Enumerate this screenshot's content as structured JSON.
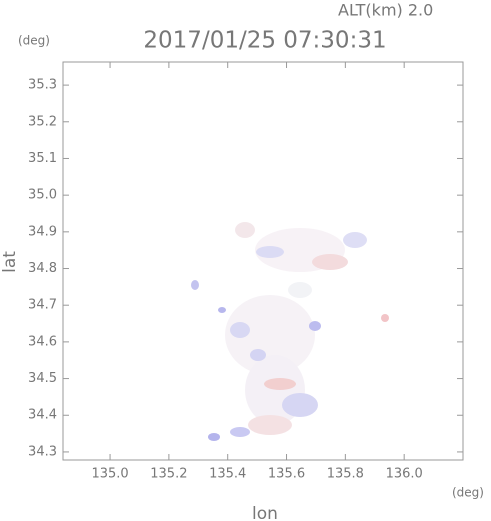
{
  "chart_data": {
    "type": "map",
    "title": "2017/01/25 07:30:31",
    "annotation": "ALT(km) 2.0",
    "y_unit": "(deg)",
    "x_unit": "(deg)",
    "x_label": "lon",
    "y_label": "lat",
    "xlim": [
      134.84,
      136.2
    ],
    "ylim": [
      34.278,
      35.363
    ],
    "xticks": [
      {
        "value": 135.0,
        "label": "135.0"
      },
      135.2,
      135.4,
      135.6,
      135.8,
      {
        "value": 136.0,
        "label": "136.0"
      }
    ],
    "yticks": [
      34.3,
      34.4,
      34.5,
      34.6,
      34.7,
      34.8,
      34.9,
      {
        "value": 35.0,
        "label": "35.0"
      },
      35.1,
      35.2,
      35.3
    ]
  }
}
